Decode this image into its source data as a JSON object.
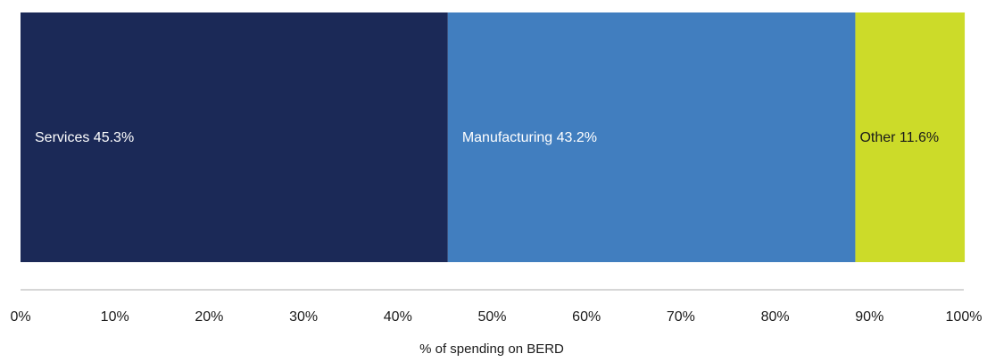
{
  "chart_data": {
    "type": "bar",
    "orientation": "horizontal",
    "stacked": true,
    "categories": [
      ""
    ],
    "series": [
      {
        "name": "Services",
        "values": [
          45.3
        ],
        "label": "Services 45.3%",
        "color": "#1b2957",
        "label_color": "#ffffff"
      },
      {
        "name": "Manufacturing",
        "values": [
          43.2
        ],
        "label": "Manufacturing 43.2%",
        "color": "#417ebf",
        "label_color": "#ffffff"
      },
      {
        "name": "Other",
        "values": [
          11.6
        ],
        "label": "Other 11.6%",
        "color": "#ccdb29",
        "label_color": "#1a1a1a"
      }
    ],
    "xlim": [
      0,
      100
    ],
    "xticks": [
      0,
      10,
      20,
      30,
      40,
      50,
      60,
      70,
      80,
      90,
      100
    ],
    "xtick_labels": [
      "0%",
      "10%",
      "20%",
      "30%",
      "40%",
      "50%",
      "60%",
      "70%",
      "80%",
      "90%",
      "100%"
    ],
    "xlabel": "% of spending on BERD",
    "ylabel": "",
    "title": "",
    "grid": false,
    "legend": "none"
  }
}
